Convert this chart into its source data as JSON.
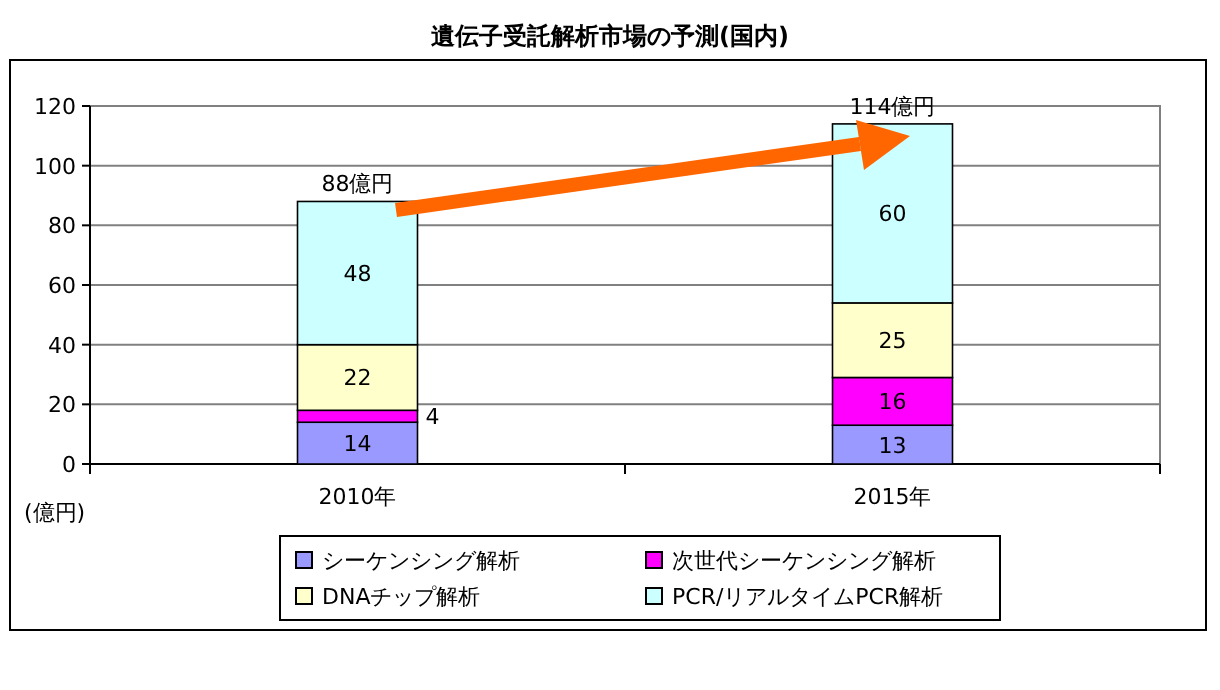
{
  "chart_data": {
    "type": "bar",
    "title": "遺伝子受託解析市場の予測(国内)",
    "ylabel": "(億円)",
    "categories": [
      "2010年",
      "2015年"
    ],
    "stacked": true,
    "series": [
      {
        "name": "シーケンシング解析",
        "color": "#9999ff",
        "values": [
          14,
          13
        ]
      },
      {
        "name": "次世代シーケンシング解析",
        "color": "#ff00ff",
        "values": [
          4,
          16
        ]
      },
      {
        "name": "DNAチップ解析",
        "color": "#ffffcc",
        "values": [
          22,
          25
        ]
      },
      {
        "name": "PCR/リアルタイムPCR解析",
        "color": "#ccffff",
        "values": [
          48,
          60
        ]
      }
    ],
    "totals": [
      "88億円",
      "114億円"
    ],
    "data_labels": true,
    "ylim": [
      0,
      120
    ],
    "yticks": [
      0,
      20,
      40,
      60,
      80,
      100,
      120
    ],
    "grid": "y",
    "legend": "bottom"
  }
}
